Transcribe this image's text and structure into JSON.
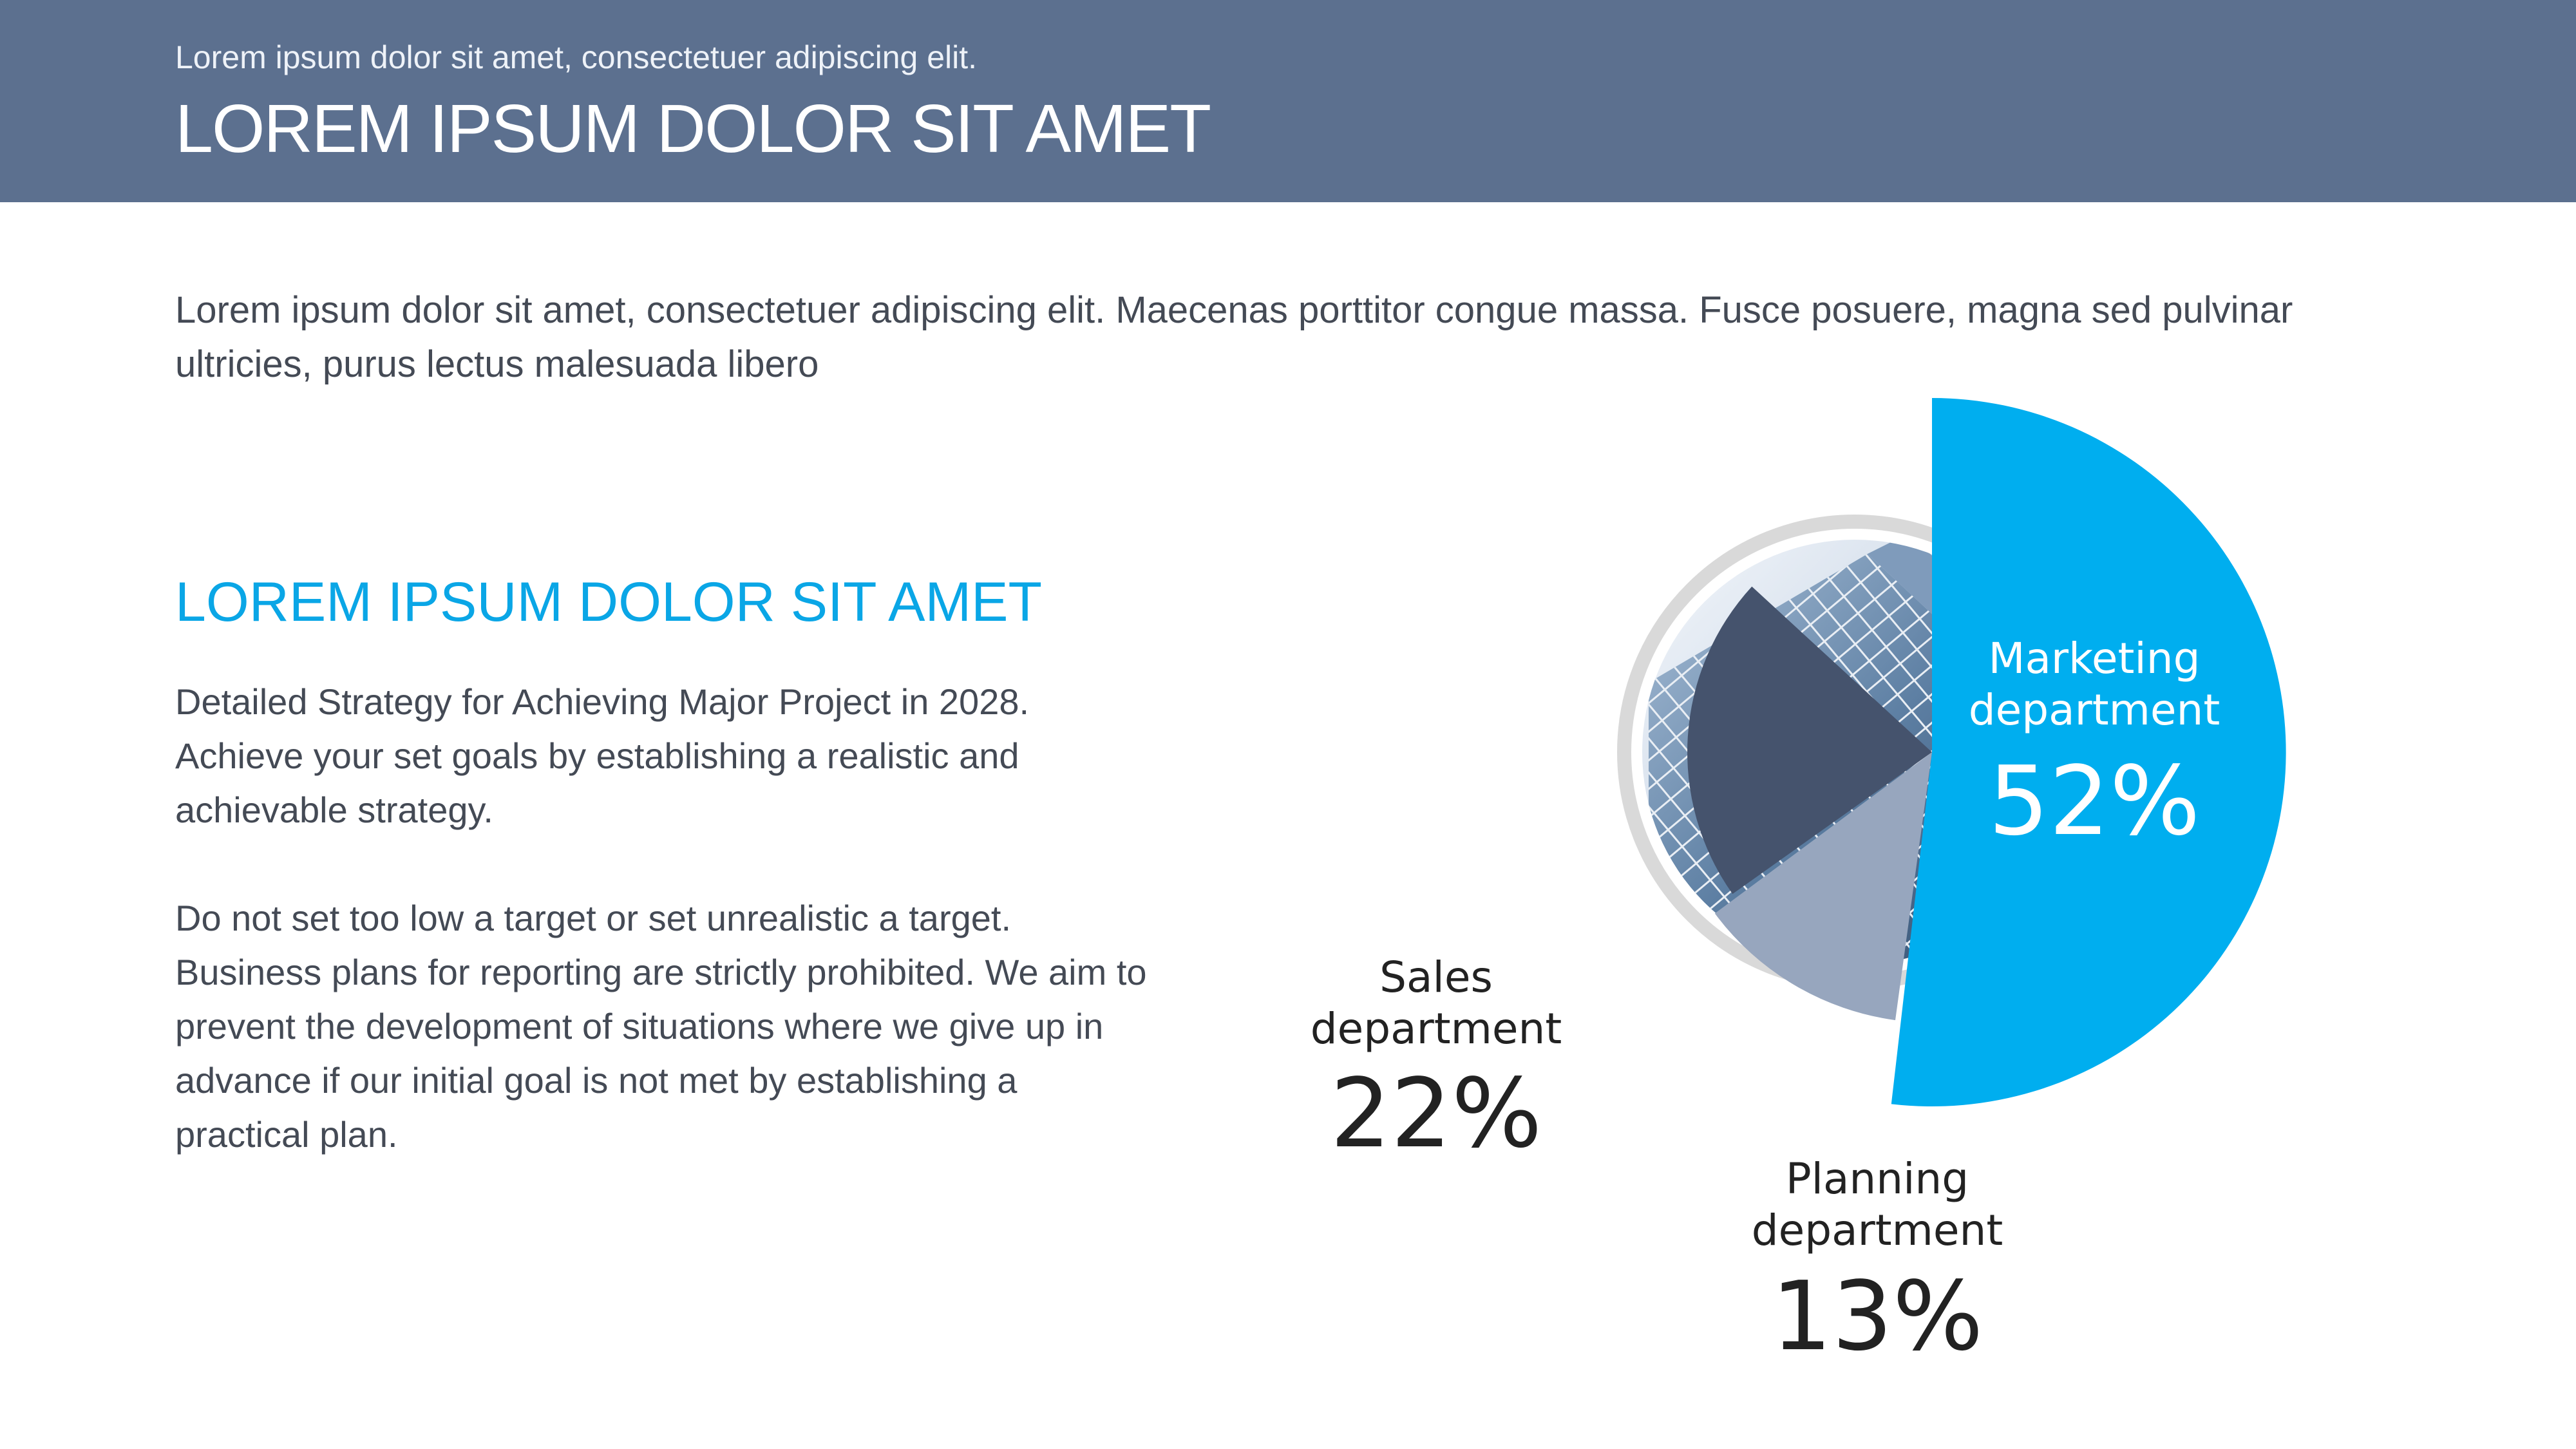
{
  "header": {
    "subtitle": "Lorem ipsum dolor sit amet, consectetuer adipiscing elit.",
    "title": "LOREM IPSUM DOLOR SIT AMET"
  },
  "intro": "Lorem ipsum dolor sit amet, consectetuer adipiscing elit. Maecenas porttitor congue massa. Fusce posuere, magna sed pulvinar ultricies, purus lectus malesuada libero",
  "section": {
    "title": "LOREM IPSUM DOLOR SIT AMET",
    "paragraph1": "Detailed Strategy for Achieving Major Project in 2028. Achieve your set goals by establishing a realistic and achievable strategy.",
    "paragraph2": "Do not set too low a target or set unrealistic a target. Business plans for reporting are strictly prohibited. We aim to prevent the development of situations where we give up in advance if our initial goal is not met by establishing a practical plan."
  },
  "chart_data": {
    "type": "pie",
    "categories": [
      "Marketing department",
      "Planning department",
      "Sales department"
    ],
    "values": [
      52,
      13,
      22
    ],
    "value_labels": [
      "52%",
      "13%",
      "22%"
    ],
    "label_lines": [
      [
        "Marketing",
        "department"
      ],
      [
        "Planning",
        "department"
      ],
      [
        "Sales",
        "department"
      ]
    ],
    "colors": [
      "#00aeef",
      "#97a6be",
      "#45536d"
    ],
    "label_colors": [
      "#ffffff",
      "#222222",
      "#222222"
    ],
    "background_image": "skyscraper photo in circle"
  }
}
